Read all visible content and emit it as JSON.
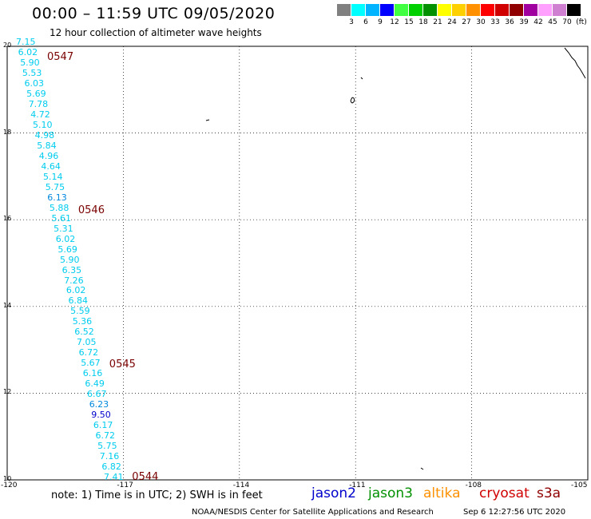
{
  "header": {
    "title": "00:00 – 11:59 UTC 09/05/2020",
    "subtitle": "12 hour collection of altimeter wave heights"
  },
  "colorbar": {
    "swatches": [
      "#808080",
      "#00ffff",
      "#00b4ff",
      "#0000ff",
      "#40ff40",
      "#00d000",
      "#009000",
      "#ffff00",
      "#ffd000",
      "#ff9000",
      "#ff0000",
      "#d00000",
      "#900000",
      "#a000a0",
      "#ffa0ff",
      "#d080d0",
      "#000000"
    ],
    "labels": [
      "3",
      "6",
      "9",
      "12",
      "15",
      "18",
      "21",
      "24",
      "27",
      "30",
      "33",
      "36",
      "39",
      "42",
      "45",
      "70",
      "(ft)"
    ]
  },
  "map": {
    "lat_labels": [
      "20",
      "18",
      "16",
      "14",
      "12",
      "10"
    ],
    "lon_labels": [
      "-120",
      "-117",
      "-114",
      "-111",
      "-108",
      "-105"
    ],
    "lat_range": [
      10,
      20
    ],
    "lon_range": [
      -120,
      -105
    ]
  },
  "swh_values": [
    {
      "v": "7.15",
      "c": "#00ccee"
    },
    {
      "v": "6.02",
      "c": "#00ccee"
    },
    {
      "v": "5.90",
      "c": "#00ccee"
    },
    {
      "v": "5.53",
      "c": "#00ccee"
    },
    {
      "v": "6.03",
      "c": "#00ccee"
    },
    {
      "v": "5.69",
      "c": "#00ccee"
    },
    {
      "v": "7.78",
      "c": "#00ccee"
    },
    {
      "v": "4.72",
      "c": "#00ccee"
    },
    {
      "v": "5.10",
      "c": "#00ccee"
    },
    {
      "v": "4.98",
      "c": "#00ccee"
    },
    {
      "v": "5.84",
      "c": "#00ccee"
    },
    {
      "v": "4.96",
      "c": "#00ccee"
    },
    {
      "v": "4.64",
      "c": "#00ccee"
    },
    {
      "v": "5.14",
      "c": "#00ccee"
    },
    {
      "v": "5.75",
      "c": "#00ccee"
    },
    {
      "v": "6.13",
      "c": "#0088dd"
    },
    {
      "v": "5.88",
      "c": "#00ccee"
    },
    {
      "v": "5.61",
      "c": "#00ccee"
    },
    {
      "v": "5.31",
      "c": "#00ccee"
    },
    {
      "v": "6.02",
      "c": "#00ccee"
    },
    {
      "v": "5.69",
      "c": "#00ccee"
    },
    {
      "v": "5.90",
      "c": "#00ccee"
    },
    {
      "v": "6.35",
      "c": "#00ccee"
    },
    {
      "v": "7.26",
      "c": "#00ccee"
    },
    {
      "v": "6.02",
      "c": "#00ccee"
    },
    {
      "v": "6.84",
      "c": "#00ccee"
    },
    {
      "v": "5.59",
      "c": "#00ccee"
    },
    {
      "v": "5.36",
      "c": "#00ccee"
    },
    {
      "v": "6.52",
      "c": "#00ccee"
    },
    {
      "v": "7.05",
      "c": "#00ccee"
    },
    {
      "v": "6.72",
      "c": "#00ccee"
    },
    {
      "v": "5.67",
      "c": "#00ccee"
    },
    {
      "v": "6.16",
      "c": "#00ccee"
    },
    {
      "v": "6.49",
      "c": "#00ccee"
    },
    {
      "v": "6.67",
      "c": "#00ccee"
    },
    {
      "v": "6.23",
      "c": "#0088dd"
    },
    {
      "v": "9.50",
      "c": "#0000cc"
    },
    {
      "v": "6.17",
      "c": "#00ccee"
    },
    {
      "v": "6.72",
      "c": "#00ccee"
    },
    {
      "v": "5.75",
      "c": "#00ccee"
    },
    {
      "v": "7.16",
      "c": "#00ccee"
    },
    {
      "v": "6.82",
      "c": "#00ccee"
    },
    {
      "v": "7.41",
      "c": "#00ccee"
    }
  ],
  "pass_times": [
    {
      "label": "0547",
      "lat": 19.75
    },
    {
      "label": "0546",
      "lat": 16.2
    },
    {
      "label": "0545",
      "lat": 12.65
    },
    {
      "label": "0544",
      "lat": 10.05
    }
  ],
  "footer": {
    "note": "note: 1) Time is in UTC; 2) SWH is in feet",
    "satellites": [
      {
        "name": "jason2",
        "color": "#0000cc"
      },
      {
        "name": "jason3",
        "color": "#009000"
      },
      {
        "name": "altika",
        "color": "#ff9000"
      },
      {
        "name": "cryosat",
        "color": "#d00000"
      },
      {
        "name": "s3a",
        "color": "#900000"
      }
    ],
    "credit": "NOAA/NESDIS Center for Satellite Applications and Research",
    "timestamp": "Sep  6 12:27:56 UTC 2020"
  }
}
